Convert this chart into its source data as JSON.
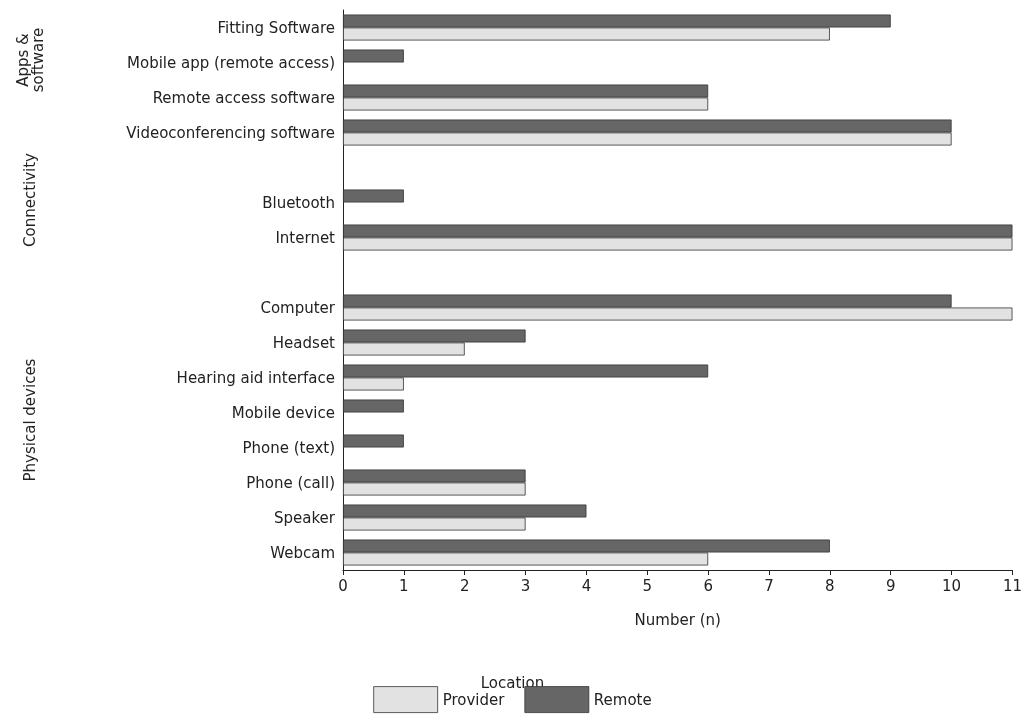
{
  "chart_data": {
    "type": "bar",
    "orientation": "horizontal",
    "xlabel": "Number (n)",
    "legend_title": "Location",
    "legend": "bottom",
    "categories": [
      "Fitting Software",
      "Mobile app (remote access)",
      "Remote access software",
      "Videoconferencing software",
      null,
      "Bluetooth",
      "Internet",
      null,
      "Computer",
      "Headset",
      "Hearing aid interface",
      "Mobile device",
      "Phone (text)",
      "Phone (call)",
      "Speaker",
      "Webcam"
    ],
    "series": [
      {
        "name": "Remote",
        "color": "#666666",
        "values": [
          9,
          1,
          6,
          10,
          null,
          1,
          11,
          null,
          10,
          3,
          6,
          1,
          1,
          3,
          4,
          8
        ]
      },
      {
        "name": "Provider",
        "color": "#e2e2e2",
        "values": [
          8,
          null,
          6,
          10,
          null,
          null,
          11,
          null,
          11,
          2,
          1,
          null,
          null,
          3,
          3,
          6
        ]
      }
    ],
    "xlim": [
      0,
      11
    ],
    "xticks": [
      0,
      1,
      2,
      3,
      4,
      5,
      6,
      7,
      8,
      9,
      10,
      11
    ],
    "grid": false,
    "annotations": [
      "Apps &\nsoftware",
      "Connectivity",
      "Physical devices"
    ]
  }
}
